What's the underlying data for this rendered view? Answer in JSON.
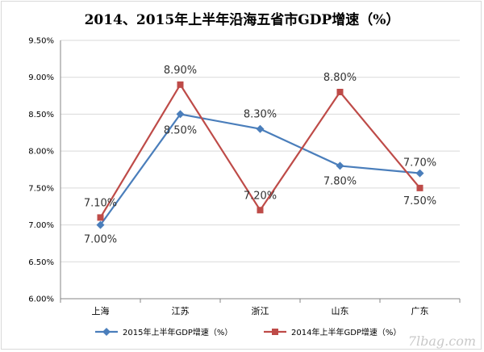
{
  "chart_data": {
    "type": "line",
    "title": "2014、2015年上半年沿海五省市GDP增速（%）",
    "categories": [
      "上海",
      "江苏",
      "浙江",
      "山东",
      "广东"
    ],
    "ylim": [
      6.0,
      9.5
    ],
    "yticks": [
      "6.00%",
      "6.50%",
      "7.00%",
      "7.50%",
      "8.00%",
      "8.50%",
      "9.00%",
      "9.50%"
    ],
    "ytick_values": [
      6.0,
      6.5,
      7.0,
      7.5,
      8.0,
      8.5,
      9.0,
      9.5
    ],
    "grid": true,
    "legend_position": "bottom",
    "series": [
      {
        "name": "2015年上半年GDP增速（%）",
        "values": [
          7.0,
          8.5,
          8.3,
          7.8,
          7.7
        ],
        "labels": [
          "7.00%",
          "8.50%",
          "8.30%",
          "7.80%",
          "7.70%"
        ],
        "color": "#4a7ebb",
        "marker": "diamond"
      },
      {
        "name": "2014年上半年GDP增速（%）",
        "values": [
          7.1,
          8.9,
          7.2,
          8.8,
          7.5
        ],
        "labels": [
          "7.10%",
          "8.90%",
          "7.20%",
          "8.80%",
          "7.50%"
        ],
        "color": "#be4b48",
        "marker": "square"
      }
    ]
  },
  "watermark": "7lbag.com"
}
